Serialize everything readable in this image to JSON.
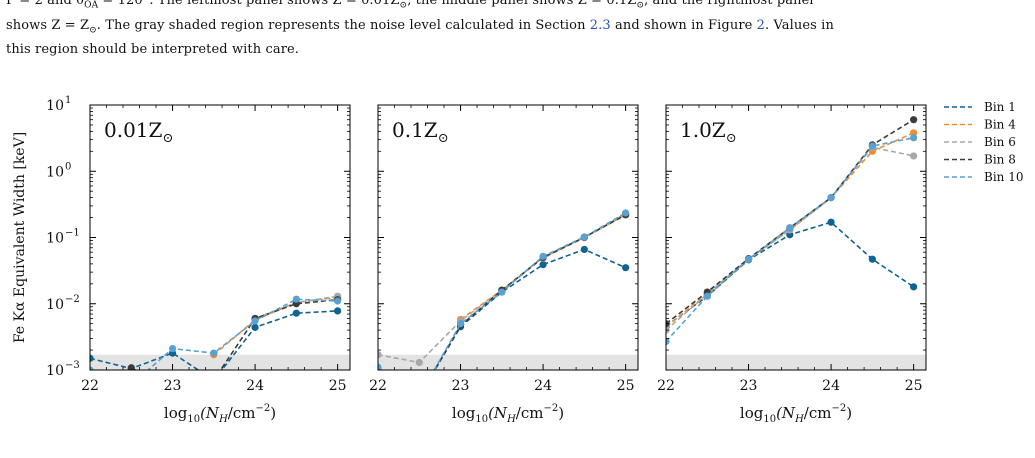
{
  "caption": {
    "line1": "Γ = 2 and θ",
    "line1_sub": "OA",
    "line1_rest": " = 120°. The leftmost panel shows Z = 0.01Z",
    "line1_rest2": ", the middle panel shows Z = 0.1Z",
    "line1_rest3": ", and the rightmost panel",
    "line2a": "shows Z = Z",
    "line2b": ". The gray shaded region represents the noise level calculated in Section ",
    "line2_ref1": "2.3",
    "line2c": " and shown in Figure ",
    "line2_ref2": "2",
    "line2d": ". Values in",
    "line3": "this region should be interpreted with care.",
    "sun": "⊙"
  },
  "colors": {
    "bin1": "#0e6390",
    "bin4": "#f08c32",
    "bin6": "#a8a8a8",
    "bin8": "#3b3b3b",
    "bin10": "#5aa1d2",
    "noise": "#e3e3e3"
  },
  "chart_data": [
    {
      "type": "line",
      "panel_label": "0.01Z",
      "panel_label_sub": "⊙",
      "ylabel": "Fe Kα Equivalent Width [keV]",
      "xlabel": "log₁₀(N_H/cm⁻²)",
      "xlabel_parts": {
        "pre": "log",
        "sub": "10",
        "mid": "(N",
        "sub2": "H",
        "post": "/cm",
        "sup": "−2",
        "end": ")"
      },
      "xlim": [
        22,
        25.15
      ],
      "ylim": [
        0.001,
        10
      ],
      "yscale": "log",
      "x_ticks": [
        "22",
        "23",
        "24",
        "25"
      ],
      "y_ticks": [
        "10",
        "10",
        "10",
        "10",
        "10"
      ],
      "y_tick_exponents": [
        "1",
        "0",
        "−1",
        "−2",
        "−3"
      ],
      "noise_band": [
        0.001,
        0.0017
      ],
      "x": [
        22,
        22.5,
        23,
        23.5,
        24,
        24.5,
        25
      ],
      "series": [
        {
          "name": "Bin 1",
          "values": [
            0.0015,
            0.00105,
            0.0018,
            0.0007,
            0.0044,
            0.0072,
            0.0078
          ]
        },
        {
          "name": "Bin 4",
          "values": [
            null,
            null,
            null,
            0.0017,
            0.0057,
            0.0105,
            0.0125
          ]
        },
        {
          "name": "Bin 6",
          "values": [
            null,
            null,
            null,
            null,
            0.006,
            0.0104,
            0.013
          ]
        },
        {
          "name": "Bin 8",
          "values": [
            null,
            0.00108,
            0.0005,
            0.0007,
            0.006,
            0.01,
            0.0115
          ]
        },
        {
          "name": "Bin 10",
          "values": [
            0.001,
            0.0006,
            0.0021,
            0.0018,
            0.0055,
            0.0117,
            0.011
          ]
        }
      ]
    },
    {
      "type": "line",
      "panel_label": "0.1Z",
      "panel_label_sub": "⊙",
      "xlabel": "log₁₀(N_H/cm⁻²)",
      "xlim": [
        22,
        25.15
      ],
      "ylim": [
        0.001,
        10
      ],
      "yscale": "log",
      "x_ticks": [
        "22",
        "23",
        "24",
        "25"
      ],
      "noise_band": [
        0.001,
        0.0017
      ],
      "x": [
        22,
        22.5,
        23,
        23.5,
        24,
        24.5,
        25
      ],
      "series": [
        {
          "name": "Bin 1",
          "values": [
            0.0009,
            0.0004,
            0.0045,
            0.015,
            0.039,
            0.066,
            0.035
          ]
        },
        {
          "name": "Bin 4",
          "values": [
            null,
            null,
            0.0058,
            0.016,
            0.05,
            0.1,
            0.22
          ]
        },
        {
          "name": "Bin 6",
          "values": [
            0.0017,
            0.0013,
            0.0055,
            0.016,
            0.049,
            0.099,
            0.23
          ]
        },
        {
          "name": "Bin 8",
          "values": [
            null,
            0.0004,
            0.0047,
            0.016,
            0.05,
            0.101,
            0.22
          ]
        },
        {
          "name": "Bin 10",
          "values": [
            0.0011,
            0.0004,
            0.005,
            0.015,
            0.052,
            0.102,
            0.235
          ]
        }
      ]
    },
    {
      "type": "line",
      "panel_label": "1.0Z",
      "panel_label_sub": "⊙",
      "xlabel": "log₁₀(N_H/cm⁻²)",
      "xlim": [
        22,
        25.15
      ],
      "ylim": [
        0.001,
        10
      ],
      "yscale": "log",
      "x_ticks": [
        "22",
        "23",
        "24",
        "25"
      ],
      "noise_band": [
        0.001,
        0.0017
      ],
      "x": [
        22,
        22.5,
        23,
        23.5,
        24,
        24.5,
        25
      ],
      "series": [
        {
          "name": "Bin 1",
          "values": [
            0.0046,
            0.013,
            0.046,
            0.11,
            0.17,
            0.047,
            0.018
          ]
        },
        {
          "name": "Bin 4",
          "values": [
            0.0045,
            0.014,
            0.047,
            0.13,
            0.4,
            2.0,
            3.8
          ]
        },
        {
          "name": "Bin 6",
          "values": [
            0.004,
            0.014,
            0.047,
            0.13,
            0.4,
            2.3,
            1.7
          ]
        },
        {
          "name": "Bin 8",
          "values": [
            0.005,
            0.015,
            0.048,
            0.14,
            0.4,
            2.5,
            6.0
          ]
        },
        {
          "name": "Bin 10",
          "values": [
            0.0027,
            0.013,
            0.047,
            0.14,
            0.4,
            2.4,
            3.2
          ]
        }
      ]
    }
  ],
  "legend": {
    "placement": "right of panels",
    "items": [
      "Bin 1",
      "Bin 4",
      "Bin 6",
      "Bin 8",
      "Bin 10"
    ]
  }
}
